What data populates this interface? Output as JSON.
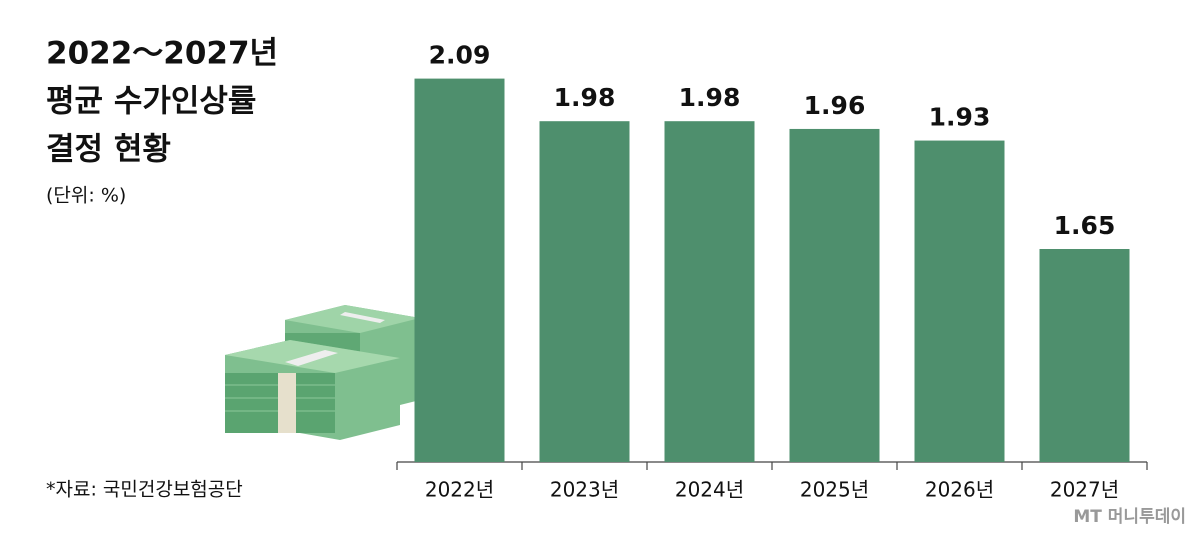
{
  "chart_data": {
    "type": "bar",
    "title": [
      "2022～2027년",
      "평균 수가인상률",
      "결정 현황"
    ],
    "subtitle": "(단위: %)",
    "source": "*자료: 국민건강보험공단",
    "watermark": "MT 머니투데이",
    "categories": [
      "2022년",
      "2023년",
      "2024년",
      "2025년",
      "2026년",
      "2027년"
    ],
    "values": [
      2.09,
      1.98,
      1.98,
      1.96,
      1.93,
      1.65
    ],
    "color": "#4e8f6d",
    "ylim": [
      1.1,
      2.2
    ]
  }
}
